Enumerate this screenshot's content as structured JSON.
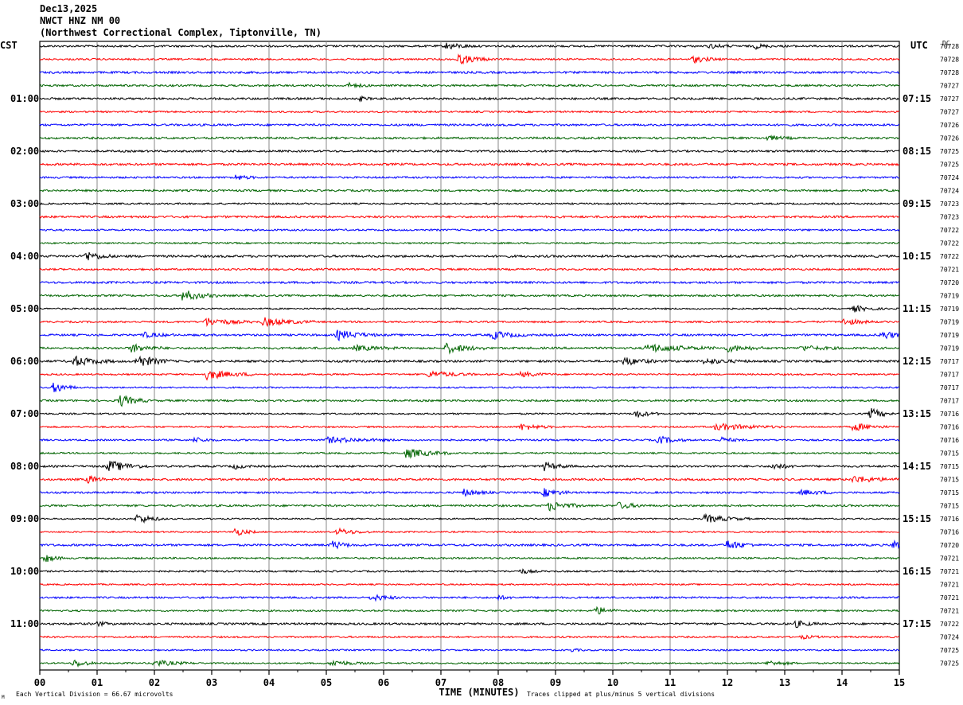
{
  "header": {
    "date": "Dec13,2025",
    "station": "NWCT HNZ NM 00",
    "location": "(Northwest Correctional Complex, Tiptonville, TN)"
  },
  "chart_data": {
    "type": "line",
    "subtype": "helicorder",
    "xlabel": "TIME (MINUTES)",
    "x_ticks": [
      "00",
      "01",
      "02",
      "03",
      "04",
      "05",
      "06",
      "07",
      "08",
      "09",
      "10",
      "11",
      "12",
      "13",
      "14",
      "15"
    ],
    "xlim": [
      0,
      15
    ],
    "grid": true,
    "left_axis_title": "CST",
    "right_axis_title": "UTC",
    "dc_title": "DC",
    "left_hour_labels": [
      "01:00",
      "02:00",
      "03:00",
      "04:00",
      "05:00",
      "06:00",
      "07:00",
      "08:00",
      "09:00",
      "10:00",
      "11:00"
    ],
    "right_hour_labels": [
      "07:15",
      "08:15",
      "09:15",
      "10:15",
      "11:15",
      "12:15",
      "13:15",
      "14:15",
      "15:15",
      "16:15",
      "17:15"
    ],
    "trace_colors": [
      "#000000",
      "#ff0000",
      "#0000ff",
      "#006400"
    ],
    "dc_offsets": [
      "70728",
      "70728",
      "70728",
      "70727",
      "70727",
      "70727",
      "70726",
      "70726",
      "70725",
      "70725",
      "70724",
      "70724",
      "70723",
      "70723",
      "70722",
      "70722",
      "70722",
      "70721",
      "70720",
      "70719",
      "70719",
      "70719",
      "70719",
      "70719",
      "70717",
      "70717",
      "70717",
      "70717",
      "70716",
      "70716",
      "70716",
      "70715",
      "70715",
      "70715",
      "70715",
      "70715",
      "70716",
      "70716",
      "70720",
      "70721",
      "70721",
      "70721",
      "70721",
      "70721",
      "70722",
      "70724",
      "70725",
      "70725"
    ],
    "events": [
      {
        "trace": 0,
        "minute": 7.1,
        "amp": 4,
        "dur": 0.5
      },
      {
        "trace": 0,
        "minute": 12.5,
        "amp": 3,
        "dur": 0.3
      },
      {
        "trace": 0,
        "minute": 11.7,
        "amp": 2.5,
        "dur": 0.4
      },
      {
        "trace": 1,
        "minute": 7.3,
        "amp": 6,
        "dur": 0.6
      },
      {
        "trace": 1,
        "minute": 11.4,
        "amp": 4,
        "dur": 0.5
      },
      {
        "trace": 3,
        "minute": 5.4,
        "amp": 2.5,
        "dur": 0.4
      },
      {
        "trace": 4,
        "minute": 5.6,
        "amp": 2.5,
        "dur": 0.2
      },
      {
        "trace": 7,
        "minute": 12.7,
        "amp": 2.5,
        "dur": 0.5
      },
      {
        "trace": 10,
        "minute": 3.4,
        "amp": 3.5,
        "dur": 0.4
      },
      {
        "trace": 16,
        "minute": 0.8,
        "amp": 6,
        "dur": 0.5
      },
      {
        "trace": 19,
        "minute": 2.5,
        "amp": 7,
        "dur": 0.6
      },
      {
        "trace": 20,
        "minute": 14.2,
        "amp": 4,
        "dur": 0.5
      },
      {
        "trace": 21,
        "minute": 2.9,
        "amp": 5,
        "dur": 0.8
      },
      {
        "trace": 21,
        "minute": 3.9,
        "amp": 5,
        "dur": 0.9
      },
      {
        "trace": 21,
        "minute": 14.0,
        "amp": 4,
        "dur": 0.6
      },
      {
        "trace": 22,
        "minute": 5.2,
        "amp": 6,
        "dur": 0.7
      },
      {
        "trace": 22,
        "minute": 7.9,
        "amp": 5,
        "dur": 0.6
      },
      {
        "trace": 22,
        "minute": 14.7,
        "amp": 5,
        "dur": 0.5
      },
      {
        "trace": 22,
        "minute": 1.8,
        "amp": 3,
        "dur": 0.6
      },
      {
        "trace": 23,
        "minute": 1.6,
        "amp": 5,
        "dur": 0.6
      },
      {
        "trace": 23,
        "minute": 7.1,
        "amp": 6,
        "dur": 0.7
      },
      {
        "trace": 23,
        "minute": 10.6,
        "amp": 5,
        "dur": 1.2
      },
      {
        "trace": 23,
        "minute": 12.0,
        "amp": 4,
        "dur": 0.7
      },
      {
        "trace": 23,
        "minute": 13.3,
        "amp": 3,
        "dur": 0.7
      },
      {
        "trace": 23,
        "minute": 5.5,
        "amp": 3,
        "dur": 0.8
      },
      {
        "trace": 24,
        "minute": 0.6,
        "amp": 6,
        "dur": 0.7
      },
      {
        "trace": 24,
        "minute": 1.7,
        "amp": 8,
        "dur": 0.6
      },
      {
        "trace": 24,
        "minute": 10.2,
        "amp": 5,
        "dur": 0.6
      },
      {
        "trace": 24,
        "minute": 11.6,
        "amp": 3,
        "dur": 0.8
      },
      {
        "trace": 25,
        "minute": 2.9,
        "amp": 6,
        "dur": 0.9
      },
      {
        "trace": 25,
        "minute": 6.8,
        "amp": 4,
        "dur": 0.8
      },
      {
        "trace": 25,
        "minute": 8.4,
        "amp": 3,
        "dur": 0.6
      },
      {
        "trace": 26,
        "minute": 0.25,
        "amp": 7,
        "dur": 0.4
      },
      {
        "trace": 27,
        "minute": 1.4,
        "amp": 7,
        "dur": 0.5
      },
      {
        "trace": 28,
        "minute": 10.4,
        "amp": 5,
        "dur": 0.4
      },
      {
        "trace": 28,
        "minute": 14.5,
        "amp": 7,
        "dur": 0.4
      },
      {
        "trace": 29,
        "minute": 8.4,
        "amp": 4,
        "dur": 0.6
      },
      {
        "trace": 29,
        "minute": 11.8,
        "amp": 4,
        "dur": 1.2
      },
      {
        "trace": 29,
        "minute": 14.2,
        "amp": 5,
        "dur": 0.6
      },
      {
        "trace": 30,
        "minute": 5.0,
        "amp": 3.5,
        "dur": 1.2
      },
      {
        "trace": 30,
        "minute": 10.8,
        "amp": 5,
        "dur": 0.5
      },
      {
        "trace": 30,
        "minute": 11.9,
        "amp": 3,
        "dur": 0.4
      },
      {
        "trace": 30,
        "minute": 2.7,
        "amp": 3,
        "dur": 0.4
      },
      {
        "trace": 31,
        "minute": 6.4,
        "amp": 6,
        "dur": 0.8
      },
      {
        "trace": 32,
        "minute": 1.2,
        "amp": 7,
        "dur": 0.7
      },
      {
        "trace": 32,
        "minute": 8.8,
        "amp": 5,
        "dur": 0.5
      },
      {
        "trace": 32,
        "minute": 12.8,
        "amp": 4,
        "dur": 0.4
      },
      {
        "trace": 32,
        "minute": 3.4,
        "amp": 3,
        "dur": 0.3
      },
      {
        "trace": 33,
        "minute": 0.85,
        "amp": 5,
        "dur": 0.3
      },
      {
        "trace": 33,
        "minute": 14.2,
        "amp": 4,
        "dur": 0.8
      },
      {
        "trace": 34,
        "minute": 7.4,
        "amp": 4,
        "dur": 0.5
      },
      {
        "trace": 34,
        "minute": 8.8,
        "amp": 5,
        "dur": 0.5
      },
      {
        "trace": 34,
        "minute": 13.3,
        "amp": 3,
        "dur": 0.7
      },
      {
        "trace": 35,
        "minute": 8.9,
        "amp": 6,
        "dur": 0.6
      },
      {
        "trace": 35,
        "minute": 10.1,
        "amp": 4,
        "dur": 0.5
      },
      {
        "trace": 36,
        "minute": 1.7,
        "amp": 6,
        "dur": 0.5
      },
      {
        "trace": 36,
        "minute": 11.6,
        "amp": 5,
        "dur": 0.8
      },
      {
        "trace": 37,
        "minute": 3.4,
        "amp": 5,
        "dur": 0.4
      },
      {
        "trace": 37,
        "minute": 5.2,
        "amp": 4,
        "dur": 0.6
      },
      {
        "trace": 38,
        "minute": 5.1,
        "amp": 5,
        "dur": 0.4
      },
      {
        "trace": 38,
        "minute": 12.0,
        "amp": 6,
        "dur": 0.5
      },
      {
        "trace": 38,
        "minute": 14.9,
        "amp": 6,
        "dur": 0.3
      },
      {
        "trace": 39,
        "minute": 0.1,
        "amp": 5,
        "dur": 0.3
      },
      {
        "trace": 40,
        "minute": 8.4,
        "amp": 3,
        "dur": 0.3
      },
      {
        "trace": 42,
        "minute": 5.8,
        "amp": 4,
        "dur": 0.5
      },
      {
        "trace": 42,
        "minute": 8.0,
        "amp": 2.5,
        "dur": 0.3
      },
      {
        "trace": 43,
        "minute": 9.7,
        "amp": 5,
        "dur": 0.4
      },
      {
        "trace": 44,
        "minute": 13.2,
        "amp": 4,
        "dur": 0.4
      },
      {
        "trace": 44,
        "minute": 1.0,
        "amp": 2.5,
        "dur": 0.3
      },
      {
        "trace": 45,
        "minute": 13.3,
        "amp": 2,
        "dur": 0.4
      },
      {
        "trace": 46,
        "minute": 9.3,
        "amp": 2,
        "dur": 0.2
      },
      {
        "trace": 47,
        "minute": 0.6,
        "amp": 5,
        "dur": 0.4
      },
      {
        "trace": 47,
        "minute": 2.0,
        "amp": 4,
        "dur": 0.7
      },
      {
        "trace": 47,
        "minute": 5.1,
        "amp": 4,
        "dur": 0.6
      },
      {
        "trace": 47,
        "minute": 12.7,
        "amp": 3,
        "dur": 0.6
      }
    ]
  },
  "footer": {
    "scale_note": "Each Vertical Division =    66.67 microvolts",
    "clip_note": "Traces clipped at plus/minus 5 vertical divisions",
    "corner_mark": "M"
  }
}
